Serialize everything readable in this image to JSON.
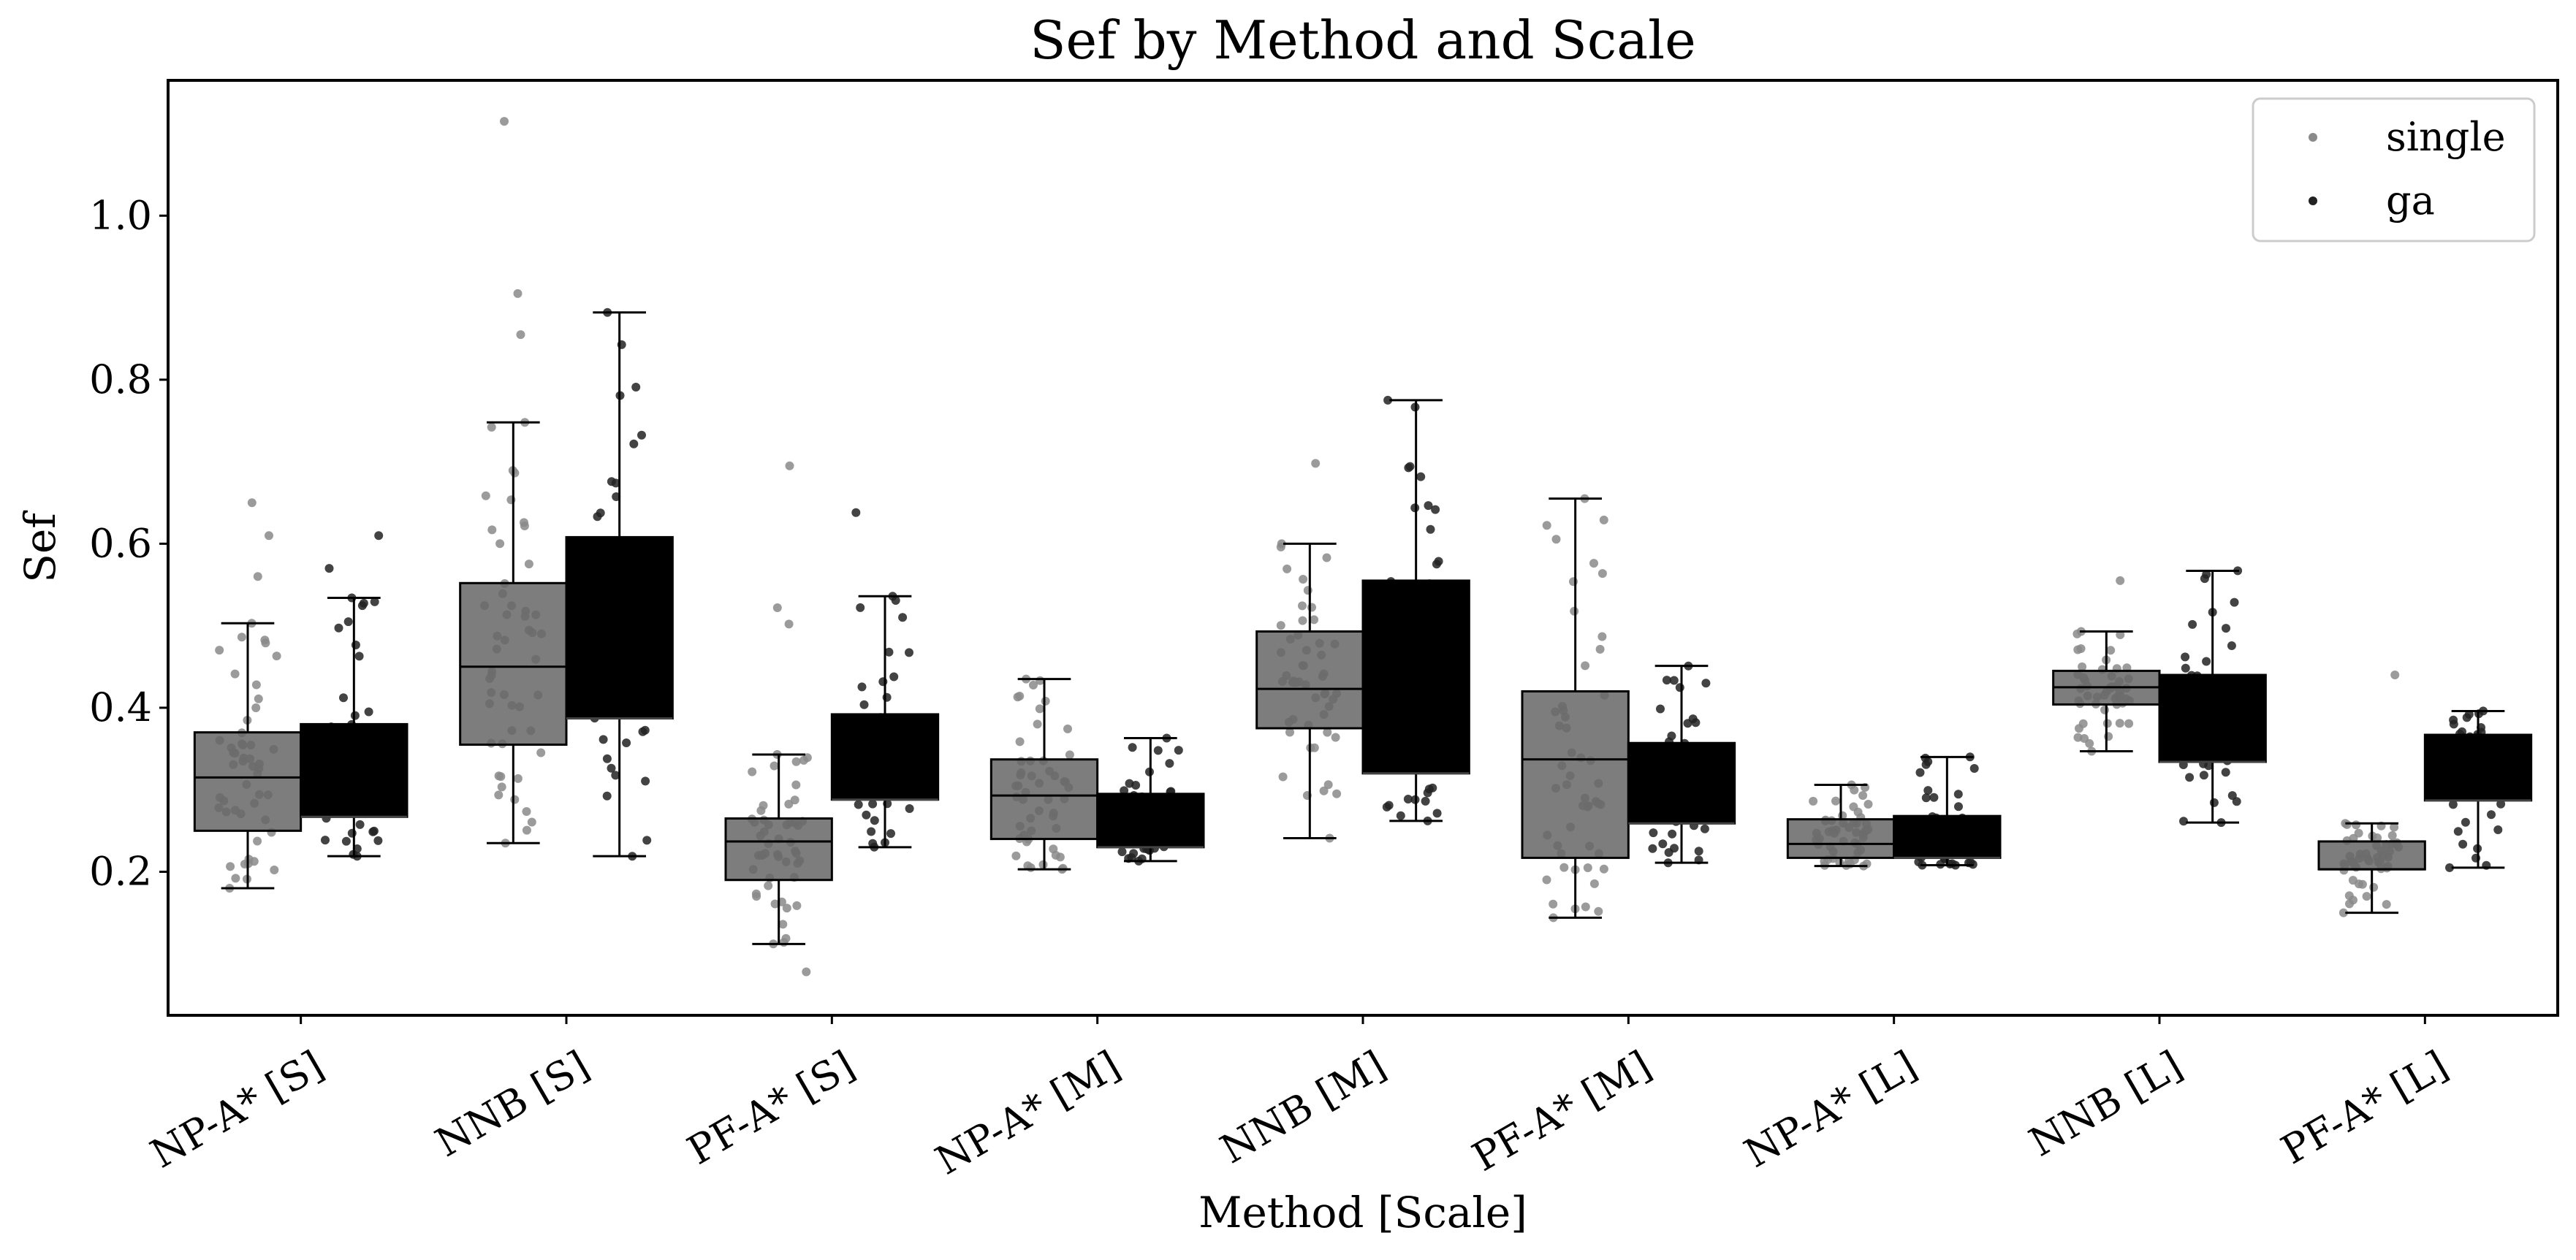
{
  "chart_data": {
    "type": "box",
    "title": "Sef by Method and Scale",
    "xlabel": "Method [Scale]",
    "ylabel": "Sef",
    "ylim": [
      0.025,
      1.165
    ],
    "yticks": [
      0.2,
      0.4,
      0.6,
      0.8,
      1.0
    ],
    "ytick_labels": [
      "0.2",
      "0.4",
      "0.6",
      "0.8",
      "1.0"
    ],
    "grid": false,
    "legend_position": "top-right",
    "categories": [
      "NP-A* [S]",
      "NNB [S]",
      "PF-A* [S]",
      "NP-A* [M]",
      "NNB [M]",
      "PF-A* [M]",
      "NP-A* [L]",
      "NNB [L]",
      "PF-A* [L]"
    ],
    "series": [
      {
        "name": "single",
        "color": "#666666",
        "point_color": "#8a8a8a",
        "boxes": [
          {
            "q1": 0.25,
            "median": 0.315,
            "q3": 0.37,
            "whisker_low": 0.18,
            "whisker_high": 0.503,
            "outliers": [
              0.56,
              0.61,
              0.65
            ]
          },
          {
            "q1": 0.355,
            "median": 0.45,
            "q3": 0.552,
            "whisker_low": 0.235,
            "whisker_high": 0.748,
            "outliers": [
              0.855,
              0.905,
              1.115
            ]
          },
          {
            "q1": 0.19,
            "median": 0.237,
            "q3": 0.265,
            "whisker_low": 0.112,
            "whisker_high": 0.343,
            "outliers": [
              0.078,
              0.502,
              0.522,
              0.695
            ]
          },
          {
            "q1": 0.24,
            "median": 0.293,
            "q3": 0.337,
            "whisker_low": 0.203,
            "whisker_high": 0.435,
            "outliers": []
          },
          {
            "q1": 0.375,
            "median": 0.423,
            "q3": 0.493,
            "whisker_low": 0.241,
            "whisker_high": 0.6,
            "outliers": [
              0.698
            ]
          },
          {
            "q1": 0.217,
            "median": 0.337,
            "q3": 0.42,
            "whisker_low": 0.144,
            "whisker_high": 0.655,
            "outliers": []
          },
          {
            "q1": 0.217,
            "median": 0.234,
            "q3": 0.264,
            "whisker_low": 0.207,
            "whisker_high": 0.306,
            "outliers": []
          },
          {
            "q1": 0.404,
            "median": 0.425,
            "q3": 0.445,
            "whisker_low": 0.347,
            "whisker_high": 0.493,
            "outliers": [
              0.555
            ]
          },
          {
            "q1": 0.203,
            "median": 0.203,
            "q3": 0.237,
            "whisker_low": 0.15,
            "whisker_high": 0.259,
            "outliers": [
              0.44
            ]
          }
        ]
      },
      {
        "name": "ga",
        "color": "#000000",
        "point_color": "#222222",
        "boxes": [
          {
            "q1": 0.267,
            "median": 0.267,
            "q3": 0.38,
            "whisker_low": 0.219,
            "whisker_high": 0.534,
            "outliers": [
              0.57,
              0.61
            ]
          },
          {
            "q1": 0.387,
            "median": 0.387,
            "q3": 0.608,
            "whisker_low": 0.219,
            "whisker_high": 0.882,
            "outliers": []
          },
          {
            "q1": 0.288,
            "median": 0.288,
            "q3": 0.392,
            "whisker_low": 0.23,
            "whisker_high": 0.536,
            "outliers": [
              0.638
            ]
          },
          {
            "q1": 0.23,
            "median": 0.23,
            "q3": 0.295,
            "whisker_low": 0.213,
            "whisker_high": 0.363,
            "outliers": []
          },
          {
            "q1": 0.32,
            "median": 0.32,
            "q3": 0.555,
            "whisker_low": 0.262,
            "whisker_high": 0.775,
            "outliers": []
          },
          {
            "q1": 0.259,
            "median": 0.259,
            "q3": 0.357,
            "whisker_low": 0.211,
            "whisker_high": 0.451,
            "outliers": []
          },
          {
            "q1": 0.217,
            "median": 0.217,
            "q3": 0.268,
            "whisker_low": 0.208,
            "whisker_high": 0.34,
            "outliers": []
          },
          {
            "q1": 0.334,
            "median": 0.334,
            "q3": 0.44,
            "whisker_low": 0.26,
            "whisker_high": 0.567,
            "outliers": []
          },
          {
            "q1": 0.287,
            "median": 0.287,
            "q3": 0.367,
            "whisker_low": 0.205,
            "whisker_high": 0.396,
            "outliers": []
          }
        ]
      }
    ]
  }
}
